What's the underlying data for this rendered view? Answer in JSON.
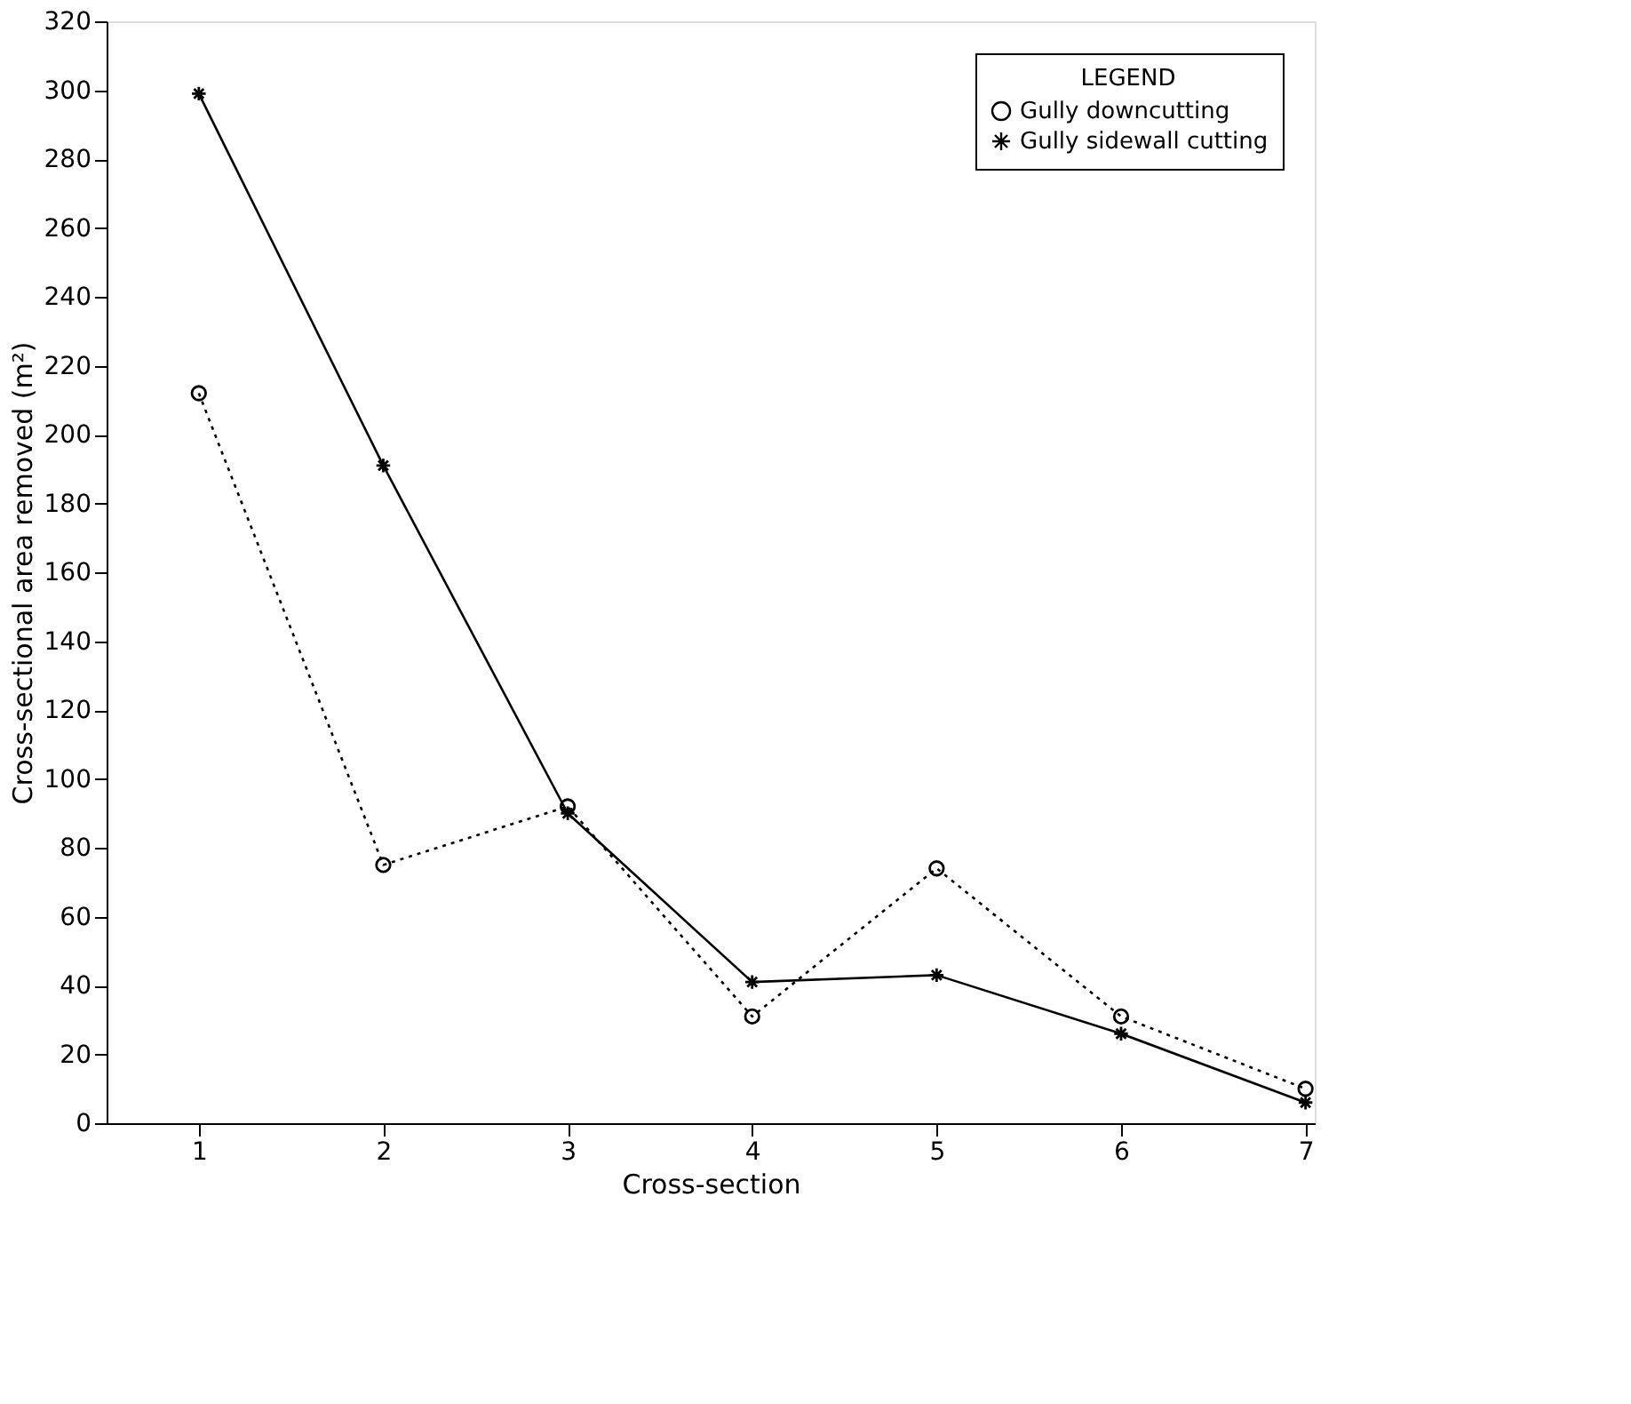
{
  "chart_data": {
    "type": "line",
    "xlabel": "Cross-section",
    "ylabel": "Cross-sectional area removed (m²)",
    "legend_title": "LEGEND",
    "x": [
      1,
      2,
      3,
      4,
      5,
      6,
      7
    ],
    "series": [
      {
        "name": "Gully downcutting",
        "color": "#000000",
        "marker": "circle",
        "line_style": "dotted",
        "values": [
          212,
          75,
          92,
          31,
          74,
          31,
          10
        ]
      },
      {
        "name": "Gully sidewall cutting",
        "color": "#000000",
        "marker": "cross",
        "line_style": "solid",
        "values": [
          299,
          191,
          90,
          41,
          43,
          26,
          6
        ]
      }
    ],
    "xlim": [
      0.5,
      7.05
    ],
    "xticks": [
      1,
      2,
      3,
      4,
      5,
      6,
      7
    ],
    "ylim": [
      0,
      320
    ],
    "yticks": [
      0,
      20,
      40,
      60,
      80,
      100,
      120,
      140,
      160,
      180,
      200,
      220,
      240,
      260,
      280,
      300,
      320
    ],
    "grid": false,
    "legend": "top right"
  }
}
